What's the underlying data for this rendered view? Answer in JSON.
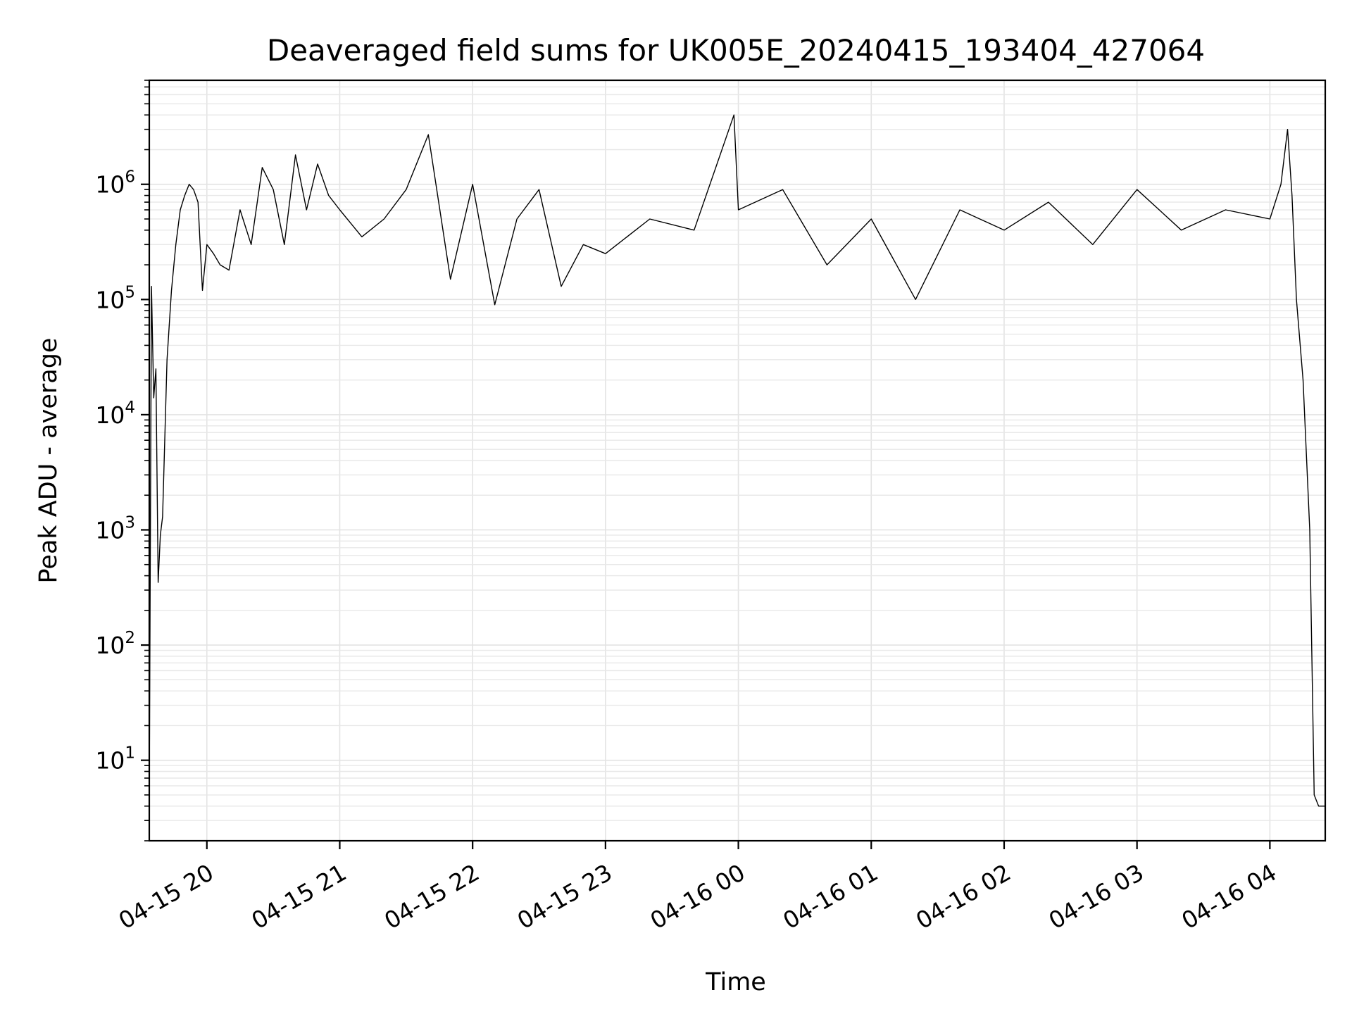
{
  "chart_data": {
    "type": "line",
    "title": "Deaveraged field sums for UK005E_20240415_193404_427064",
    "xlabel": "Time",
    "ylabel": "Peak ADU - average",
    "yscale": "log",
    "ylim": [
      2,
      8000000
    ],
    "xlim": [
      "2024-04-15 19:34",
      "2024-04-16 04:25"
    ],
    "grid": true,
    "x_tick_labels": [
      "04-15 20",
      "04-15 21",
      "04-15 22",
      "04-15 23",
      "04-16 00",
      "04-16 01",
      "04-16 02",
      "04-16 03",
      "04-16 04"
    ],
    "x_ticks": [
      "2024-04-15 20:00",
      "2024-04-15 21:00",
      "2024-04-15 22:00",
      "2024-04-15 23:00",
      "2024-04-16 00:00",
      "2024-04-16 01:00",
      "2024-04-16 02:00",
      "2024-04-16 03:00",
      "2024-04-16 04:00"
    ],
    "y_tick_labels": [
      {
        "base": "10",
        "exp": "1"
      },
      {
        "base": "10",
        "exp": "2"
      },
      {
        "base": "10",
        "exp": "3"
      },
      {
        "base": "10",
        "exp": "4"
      },
      {
        "base": "10",
        "exp": "5"
      },
      {
        "base": "10",
        "exp": "6"
      }
    ],
    "y_ticks": [
      10,
      100,
      1000,
      10000,
      100000,
      1000000
    ],
    "series": [
      {
        "color": "#000000",
        "x": [
          "2024-04-15 19:34",
          "2024-04-15 19:35",
          "2024-04-15 19:36",
          "2024-04-15 19:37",
          "2024-04-15 19:38",
          "2024-04-15 19:39",
          "2024-04-15 19:40",
          "2024-04-15 19:42",
          "2024-04-15 19:44",
          "2024-04-15 19:46",
          "2024-04-15 19:48",
          "2024-04-15 19:50",
          "2024-04-15 19:52",
          "2024-04-15 19:54",
          "2024-04-15 19:56",
          "2024-04-15 19:58",
          "2024-04-15 20:00",
          "2024-04-15 20:03",
          "2024-04-15 20:06",
          "2024-04-15 20:10",
          "2024-04-15 20:15",
          "2024-04-15 20:20",
          "2024-04-15 20:25",
          "2024-04-15 20:30",
          "2024-04-15 20:35",
          "2024-04-15 20:40",
          "2024-04-15 20:45",
          "2024-04-15 20:50",
          "2024-04-15 20:55",
          "2024-04-15 21:00",
          "2024-04-15 21:10",
          "2024-04-15 21:20",
          "2024-04-15 21:30",
          "2024-04-15 21:40",
          "2024-04-15 21:50",
          "2024-04-15 22:00",
          "2024-04-15 22:10",
          "2024-04-15 22:20",
          "2024-04-15 22:30",
          "2024-04-15 22:40",
          "2024-04-15 22:50",
          "2024-04-15 23:00",
          "2024-04-15 23:20",
          "2024-04-15 23:40",
          "2024-04-15 23:58",
          "2024-04-16 00:00",
          "2024-04-16 00:20",
          "2024-04-16 00:40",
          "2024-04-16 01:00",
          "2024-04-16 01:20",
          "2024-04-16 01:40",
          "2024-04-16 02:00",
          "2024-04-16 02:20",
          "2024-04-16 02:40",
          "2024-04-16 03:00",
          "2024-04-16 03:20",
          "2024-04-16 03:40",
          "2024-04-16 04:00",
          "2024-04-16 04:05",
          "2024-04-16 04:08",
          "2024-04-16 04:10",
          "2024-04-16 04:12",
          "2024-04-16 04:15",
          "2024-04-16 04:18",
          "2024-04-16 04:20",
          "2024-04-16 04:22",
          "2024-04-16 04:25"
        ],
        "y": [
          5,
          130000,
          14000,
          25000,
          350,
          900,
          1300,
          30000,
          120000,
          300000,
          600000,
          800000,
          1000000,
          900000,
          700000,
          120000,
          300000,
          250000,
          200000,
          180000,
          600000,
          300000,
          1400000,
          900000,
          300000,
          1800000,
          600000,
          1500000,
          800000,
          600000,
          350000,
          500000,
          900000,
          2700000,
          150000,
          1000000,
          90000,
          500000,
          900000,
          130000,
          300000,
          250000,
          500000,
          400000,
          4000000,
          600000,
          900000,
          200000,
          500000,
          100000,
          600000,
          400000,
          700000,
          300000,
          900000,
          400000,
          600000,
          500000,
          1000000,
          3000000,
          800000,
          100000,
          20000,
          1000,
          5,
          4,
          4
        ]
      }
    ]
  }
}
